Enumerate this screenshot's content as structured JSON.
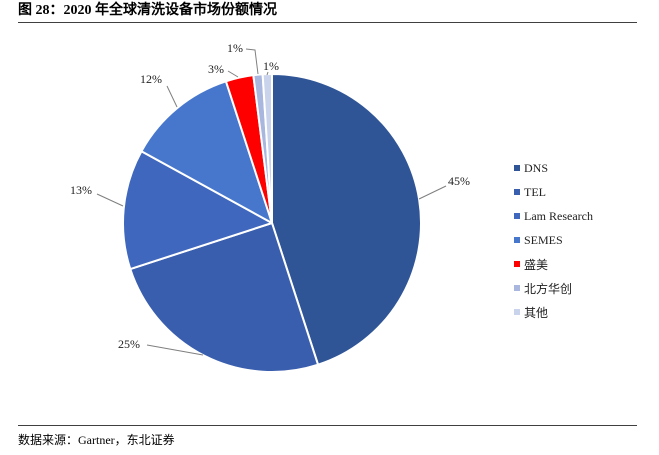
{
  "chart_data": {
    "type": "pie",
    "title": "图 28：2020 年全球清洗设备市场份额情况",
    "categories": [
      "DNS",
      "TEL",
      "Lam Research",
      "SEMES",
      "盛美",
      "北方华创",
      "其他"
    ],
    "values": [
      45,
      25,
      13,
      12,
      3,
      1,
      1
    ],
    "value_labels": [
      "45%",
      "25%",
      "13%",
      "12%",
      "3%",
      "1%",
      "1%"
    ],
    "colors": [
      "#2F5597",
      "#3A5EAE",
      "#3F67BE",
      "#4777CD",
      "#FF0000",
      "#A9B7DF",
      "#C9D3EC"
    ],
    "legend_position": "right"
  },
  "footer": {
    "source": "数据来源：Gartner，东北证券"
  }
}
